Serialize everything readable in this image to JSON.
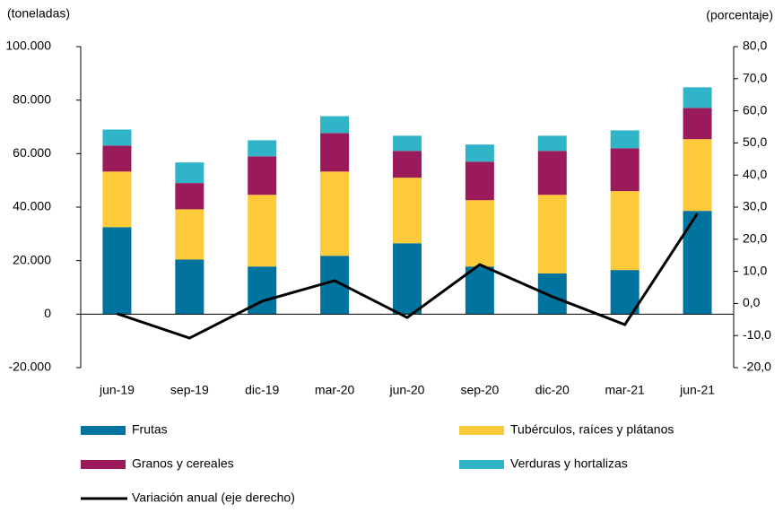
{
  "chart_data": {
    "type": "bar",
    "y_label": "(toneladas)",
    "y2_label": "(porcentaje)",
    "categories": [
      "jun-19",
      "sep-19",
      "dic-19",
      "mar-20",
      "jun-20",
      "sep-20",
      "dic-20",
      "mar-21",
      "jun-21"
    ],
    "series": [
      {
        "name": "Frutas",
        "color": "#00749e",
        "values": [
          32500,
          20400,
          17800,
          21800,
          26500,
          17800,
          15200,
          16500,
          38600
        ]
      },
      {
        "name": "Tubérculos, raíces y plátanos",
        "color": "#fdcb3a",
        "values": [
          20800,
          18800,
          26800,
          31500,
          24500,
          24800,
          29400,
          29500,
          26800
        ]
      },
      {
        "name": "Granos y cereales",
        "color": "#9b1b5a",
        "values": [
          9700,
          9800,
          14400,
          14400,
          10000,
          14400,
          16400,
          16000,
          11700
        ]
      },
      {
        "name": "Verduras y hortalizas",
        "color": "#30b5c8",
        "values": [
          6000,
          7700,
          6000,
          6300,
          5700,
          6400,
          5700,
          6700,
          7700
        ]
      },
      {
        "name": "Variación anual (eje derecho)",
        "color": "#000000",
        "type": "line",
        "axis": "y2",
        "values": [
          -3.2,
          -10.8,
          0.7,
          7.1,
          -4.4,
          12.1,
          2.1,
          -6.6,
          28.0
        ]
      }
    ],
    "stacked": true,
    "ylim": [
      -20000,
      100000
    ],
    "yticks": [
      {
        "value": -20000,
        "label": "-20.000"
      },
      0,
      {
        "value": 20000,
        "label": "20.000"
      },
      {
        "value": 40000,
        "label": "40.000"
      },
      {
        "value": 60000,
        "label": "60.000"
      },
      {
        "value": 80000,
        "label": "80.000"
      },
      {
        "value": 100000,
        "label": "100.000"
      }
    ],
    "y2lim": [
      -20,
      80
    ],
    "y2ticks": [
      {
        "value": -20,
        "label": "-20,0"
      },
      {
        "value": -10,
        "label": "-10,0"
      },
      {
        "value": 0,
        "label": "0,0"
      },
      {
        "value": 10,
        "label": "10,0"
      },
      {
        "value": 20,
        "label": "20,0"
      },
      {
        "value": 30,
        "label": "30,0"
      },
      {
        "value": 40,
        "label": "40,0"
      },
      {
        "value": 50,
        "label": "50,0"
      },
      {
        "value": 60,
        "label": "60,0"
      },
      {
        "value": 70,
        "label": "70,0"
      },
      {
        "value": 80,
        "label": "80,0"
      }
    ],
    "grid": false
  }
}
